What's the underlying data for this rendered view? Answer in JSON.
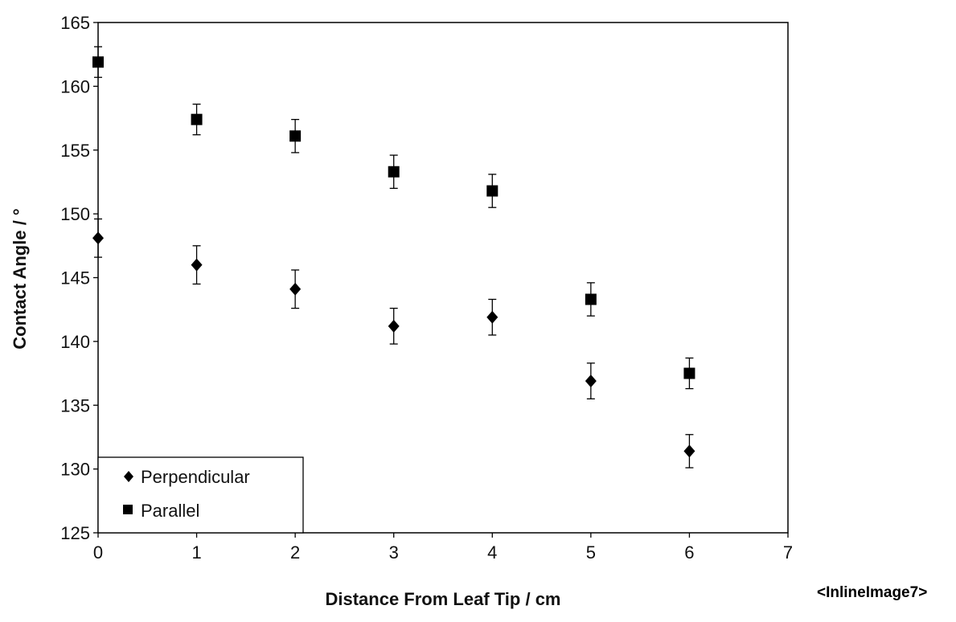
{
  "caption": "<InlineImage7>",
  "chart_data": {
    "type": "scatter",
    "title": "",
    "xlabel": "Distance From Leaf Tip / cm",
    "ylabel": "Contact Angle / °",
    "xlim": [
      0,
      7
    ],
    "ylim": [
      125,
      165
    ],
    "xticks": [
      0,
      1,
      2,
      3,
      4,
      5,
      6,
      7
    ],
    "yticks": [
      125,
      130,
      135,
      140,
      145,
      150,
      155,
      160,
      165
    ],
    "grid": false,
    "legend_position": "bottom-left",
    "series": [
      {
        "name": "Perpendicular",
        "marker": "diamond",
        "color": "#000000",
        "x": [
          0,
          1,
          2,
          3,
          4,
          5,
          6
        ],
        "y": [
          148.1,
          146.0,
          144.1,
          141.2,
          141.9,
          136.9,
          131.4
        ],
        "error": [
          1.5,
          1.5,
          1.5,
          1.4,
          1.4,
          1.4,
          1.3
        ]
      },
      {
        "name": "Parallel",
        "marker": "square",
        "color": "#000000",
        "x": [
          0,
          1,
          2,
          3,
          4,
          5,
          6
        ],
        "y": [
          161.9,
          157.4,
          156.1,
          153.3,
          151.8,
          143.3,
          137.5
        ],
        "error": [
          1.2,
          1.2,
          1.3,
          1.3,
          1.3,
          1.3,
          1.2
        ]
      }
    ]
  }
}
